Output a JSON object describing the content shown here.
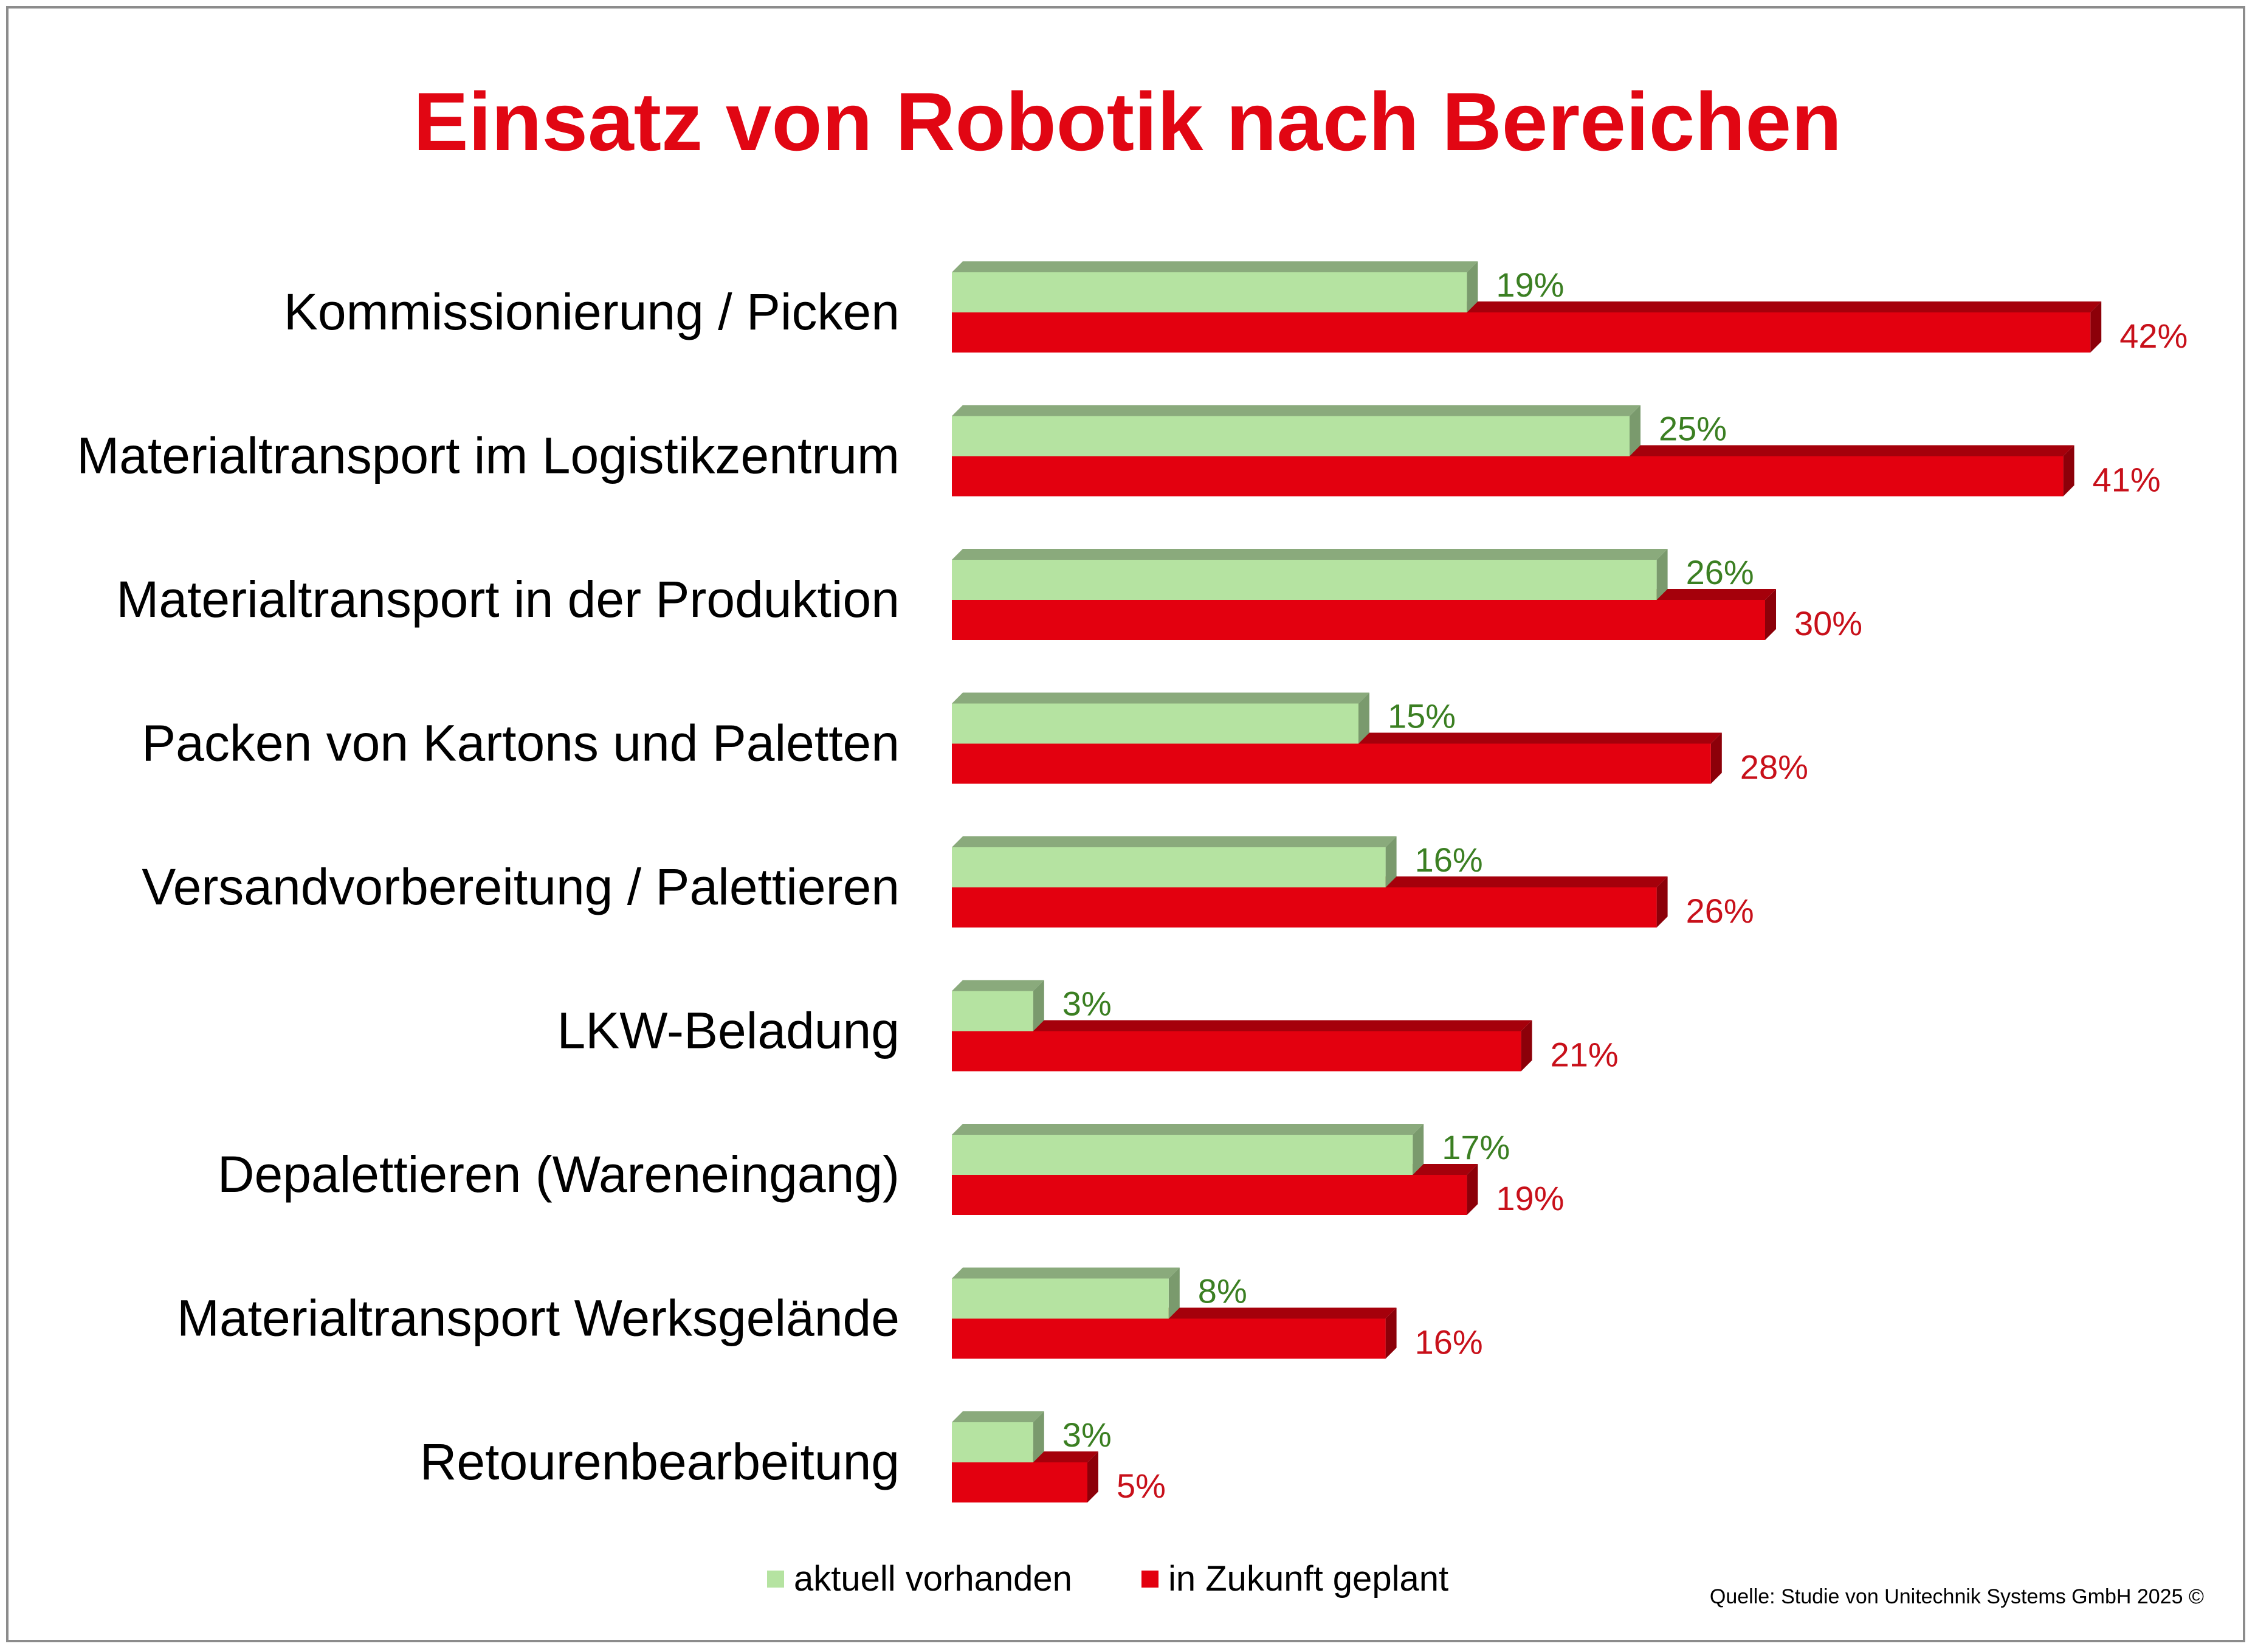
{
  "chart_data": {
    "type": "bar",
    "orientation": "horizontal",
    "title": "Einsatz von Robotik nach Bereichen",
    "categories": [
      "Kommissionierung / Picken",
      "Materialtransport im Logistikzentrum",
      "Materialtransport in der Produktion",
      "Packen von Kartons und Paletten",
      "Versandvorbereitung / Palettieren",
      "LKW-Beladung",
      "Depalettieren (Wareneingang)",
      "Materialtransport Werksgelände",
      "Retourenbearbeitung"
    ],
    "series": [
      {
        "name": "aktuell vorhanden",
        "color": "#b5e3a1",
        "label_color": "#3b7f22",
        "values": [
          19,
          25,
          26,
          15,
          16,
          3,
          17,
          8,
          3
        ],
        "labels": [
          "19%",
          "25%",
          "26%",
          "15%",
          "16%",
          "3%",
          "17%",
          "8%",
          "3%"
        ]
      },
      {
        "name": "in Zukunft geplant",
        "color": "#e3000f",
        "label_color": "#c8101a",
        "values": [
          42,
          41,
          30,
          28,
          26,
          21,
          19,
          16,
          5
        ],
        "labels": [
          "42%",
          "41%",
          "30%",
          "28%",
          "26%",
          "21%",
          "19%",
          "16%",
          "5%"
        ]
      }
    ],
    "xlim": [
      0,
      45
    ],
    "unit": "%",
    "grid": false,
    "legend": "bottom-center"
  },
  "source": "Quelle: Studie von Unitechnik Systems GmbH 2025 ©"
}
